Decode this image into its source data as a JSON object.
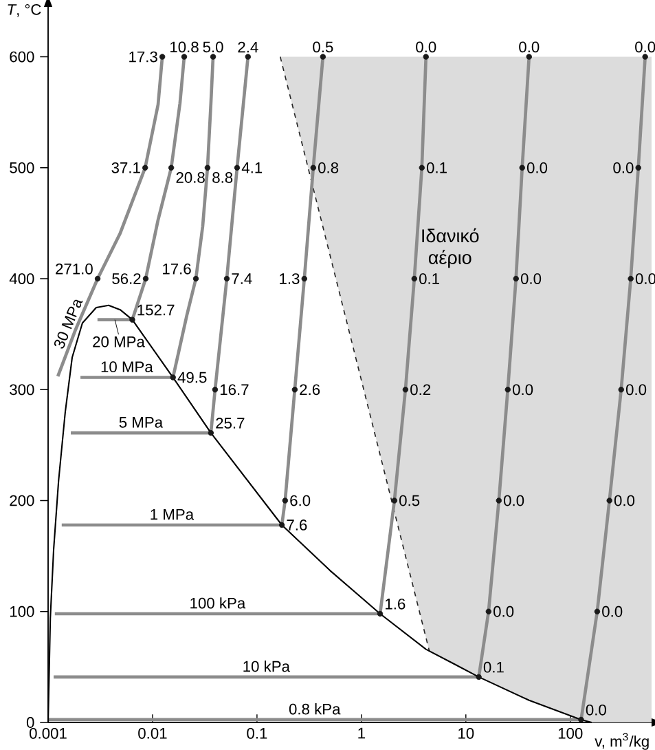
{
  "chart_data": {
    "type": "line",
    "xlabel": "v, m$^{3}$/kg",
    "ylabel": "*T*, °C",
    "log": "x",
    "xlim": [
      0.001,
      600
    ],
    "ylim": [
      0,
      645
    ],
    "xticks": [
      0.001,
      0.01,
      0.1,
      1,
      10,
      100
    ],
    "yticks": [
      0,
      100,
      200,
      300,
      400,
      500,
      600
    ],
    "annotations": [
      "Ιδανικό αέριο",
      {
        "text": "271.0",
        "x": 0.00298,
        "y": 400
      },
      {
        "text": "37.1",
        "x": 0.0085,
        "y": 500
      },
      {
        "text": "17.3",
        "x": 0.0124,
        "y": 600
      },
      {
        "text": "152.7",
        "x": 0.0064,
        "y": 363
      },
      {
        "text": "56.2",
        "x": 0.0086,
        "y": 400
      },
      {
        "text": "20.8",
        "x": 0.0151,
        "y": 500
      },
      {
        "text": "10.8",
        "x": 0.0201,
        "y": 600
      },
      {
        "text": "49.5",
        "x": 0.0157,
        "y": 311
      },
      {
        "text": "17.6",
        "x": 0.026,
        "y": 400
      },
      {
        "text": "8.8",
        "x": 0.0336,
        "y": 500
      },
      {
        "text": "5.0",
        "x": 0.038,
        "y": 600
      },
      {
        "text": "25.7",
        "x": 0.0362,
        "y": 261
      },
      {
        "text": "16.7",
        "x": 0.0397,
        "y": 300
      },
      {
        "text": "7.4",
        "x": 0.0514,
        "y": 400
      },
      {
        "text": "4.1",
        "x": 0.0645,
        "y": 500
      },
      {
        "text": "2.4",
        "x": 0.082,
        "y": 600
      },
      {
        "text": "7.6",
        "x": 0.173,
        "y": 178
      },
      {
        "text": "6.0",
        "x": 0.186,
        "y": 200
      },
      {
        "text": "2.6",
        "x": 0.23,
        "y": 300
      },
      {
        "text": "1.3",
        "x": 0.284,
        "y": 400
      },
      {
        "text": "0.8",
        "x": 0.346,
        "y": 500
      },
      {
        "text": "0.5",
        "x": 0.428,
        "y": 600
      },
      {
        "text": "1.6",
        "x": 1.51,
        "y": 98
      },
      {
        "text": "0.5",
        "x": 2.07,
        "y": 200
      },
      {
        "text": "0.2",
        "x": 2.64,
        "y": 300
      },
      {
        "text": "0.1",
        "x": 3.21,
        "y": 400
      },
      {
        "text": "0.1",
        "x": 3.79,
        "y": 500
      },
      {
        "text": "0.0",
        "x": 4.15,
        "y": 600
      },
      {
        "text": "0.1",
        "x": 13.3,
        "y": 41
      },
      {
        "text": "0.0",
        "x": 16.5,
        "y": 100
      },
      {
        "text": "0.0",
        "x": 20.7,
        "y": 200
      },
      {
        "text": "0.0",
        "x": 25.2,
        "y": 300
      },
      {
        "text": "0.0",
        "x": 30.2,
        "y": 400
      },
      {
        "text": "0.0",
        "x": 34.6,
        "y": 500
      },
      {
        "text": "0.0",
        "x": 40.3,
        "y": 600
      },
      {
        "text": "0.0",
        "x": 127,
        "y": 2.5
      },
      {
        "text": "0.0",
        "x": 181,
        "y": 100
      },
      {
        "text": "0.0",
        "x": 237,
        "y": 200
      },
      {
        "text": "0.0",
        "x": 307,
        "y": 300
      },
      {
        "text": "0.0",
        "x": 379,
        "y": 400
      },
      {
        "text": "0.0",
        "x": 448,
        "y": 500
      },
      {
        "text": "0.0",
        "x": 521,
        "y": 600
      }
    ],
    "series": [
      {
        "type": "area",
        "color": "#dcdcdc",
        "line_style": "dashed",
        "x": [
          0.167,
          4.48,
          7.62,
          13.3,
          40.3,
          127,
          160,
          600,
          600
        ],
        "values": [
          600,
          64,
          53,
          41,
          20,
          2.5,
          0,
          0,
          600
        ]
      },
      {
        "name": "30 MPa",
        "color": "#8c8c8c",
        "x": [
          0.00124,
          0.00183,
          0.00298,
          0.0049,
          0.0085,
          0.0113,
          0.0124
        ],
        "values": [
          312,
          354,
          400,
          441,
          500,
          557,
          600
        ]
      },
      {
        "name": "20 MPa",
        "color": "#8c8c8c",
        "x": [
          0.00297,
          0.0064,
          0.0086,
          0.0113,
          0.0151,
          0.0183,
          0.0201
        ],
        "values": [
          363,
          363,
          400,
          453,
          500,
          558,
          600
        ]
      },
      {
        "name": "10 MPa",
        "color": "#8c8c8c",
        "x": [
          0.00204,
          0.0157,
          0.0213,
          0.026,
          0.0302,
          0.0336,
          0.0362,
          0.038
        ],
        "values": [
          311,
          311,
          367,
          400,
          447,
          500,
          558,
          600
        ]
      },
      {
        "name": "5 MPa",
        "color": "#8c8c8c",
        "x": [
          0.00165,
          0.0362,
          0.0397,
          0.0514,
          0.0645,
          0.082
        ],
        "values": [
          261,
          261,
          300,
          400,
          500,
          600
        ]
      },
      {
        "name": "1 MPa",
        "color": "#8c8c8c",
        "x": [
          0.00135,
          0.173,
          0.186,
          0.23,
          0.284,
          0.346,
          0.428
        ],
        "values": [
          178,
          178,
          200,
          300,
          400,
          500,
          600
        ]
      },
      {
        "name": "100 kPa",
        "color": "#8c8c8c",
        "x": [
          0.00116,
          1.51,
          2.07,
          2.64,
          3.21,
          3.79,
          4.15
        ],
        "values": [
          98,
          98,
          200,
          300,
          400,
          500,
          600
        ]
      },
      {
        "name": "10 kPa",
        "color": "#8c8c8c",
        "x": [
          0.00113,
          13.3,
          16.5,
          20.7,
          25.2,
          30.2,
          34.6,
          40.3
        ],
        "values": [
          41,
          41,
          100,
          200,
          300,
          400,
          500,
          600
        ]
      },
      {
        "name": "0.8 kPa",
        "color": "#8c8c8c",
        "x": [
          0.001,
          127,
          181,
          237,
          307,
          379,
          448,
          521
        ],
        "values": [
          2.5,
          2.5,
          100,
          200,
          300,
          400,
          500,
          600
        ]
      },
      {
        "color": "#000000",
        "x": [
          0.001,
          0.00105,
          0.00113,
          0.00126,
          0.00146,
          0.0017,
          0.00213,
          0.00289,
          0.0038,
          0.0049,
          0.0064,
          0.0157,
          0.0362,
          0.173,
          0.5,
          1.51,
          4.15,
          7.62,
          13.3,
          40.3,
          127,
          160
        ],
        "values": [
          0,
          94,
          156,
          218,
          280,
          329,
          360,
          374,
          376,
          372,
          363,
          311,
          261,
          178,
          137,
          98,
          66,
          53,
          41,
          20,
          2.5,
          0
        ]
      },
      {
        "type": "scatter",
        "color": "#1a1a1a",
        "marker": "circle",
        "x": [
          0.00298,
          0.0085,
          0.0124,
          0.0064,
          0.0086,
          0.0151,
          0.0201,
          0.0157,
          0.026,
          0.0336,
          0.038,
          0.0362,
          0.0397,
          0.0514,
          0.0645,
          0.082,
          0.173,
          0.186,
          0.23,
          0.284,
          0.346,
          0.428,
          1.51,
          2.07,
          2.64,
          3.21,
          3.79,
          4.15,
          13.3,
          16.5,
          20.7,
          25.2,
          30.2,
          34.6,
          40.3,
          127,
          181,
          237,
          307,
          379,
          448,
          521
        ],
        "values": [
          400,
          500,
          600,
          363,
          400,
          500,
          600,
          311,
          400,
          500,
          600,
          261,
          300,
          400,
          500,
          600,
          178,
          200,
          300,
          400,
          500,
          600,
          98,
          200,
          300,
          400,
          500,
          600,
          41,
          100,
          200,
          300,
          400,
          500,
          600,
          2.5,
          100,
          200,
          300,
          400,
          500,
          600
        ]
      }
    ]
  }
}
